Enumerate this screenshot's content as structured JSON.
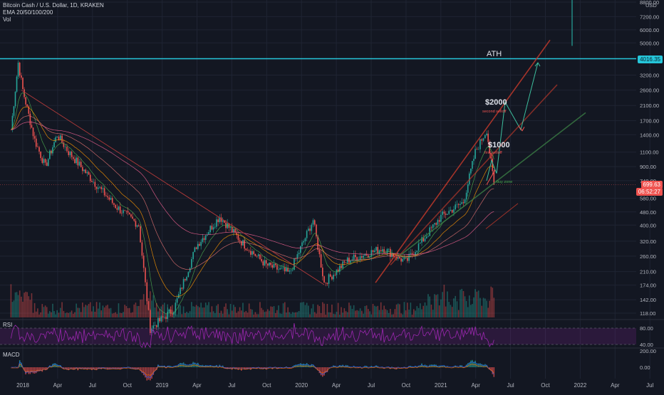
{
  "legend": {
    "symbol_line": "Bitcoin Cash / U.S. Dollar, 1D, KRAKEN",
    "ema_line": "EMA 20/50/100/200",
    "vol_line": "Vol"
  },
  "panes": {
    "rsi_label": "RSI",
    "macd_label": "MACD"
  },
  "price_axis": {
    "ticks": [
      "8800.00",
      "7200.00",
      "6000.00",
      "5000.00",
      "3200.00",
      "2600.00",
      "2100.00",
      "1700.00",
      "1400.00",
      "1100.00",
      "900.00",
      "740.00",
      "580.00",
      "480.00",
      "400.00",
      "320.00",
      "260.00",
      "210.00",
      "174.00",
      "142.00",
      "118.00"
    ],
    "top_unit": "USD",
    "ath_tag": "4016.35",
    "last_price_tag": "699.63",
    "last_time_tag": "06:52:27"
  },
  "rsi_axis": {
    "ticks": [
      "80.00",
      "40.00"
    ]
  },
  "macd_axis": {
    "ticks": [
      "200.00",
      "0.00"
    ]
  },
  "time_axis": {
    "labels": [
      "2018",
      "Apr",
      "Jul",
      "Oct",
      "2019",
      "Apr",
      "Jul",
      "Oct",
      "2020",
      "Apr",
      "Jul",
      "Oct",
      "2021",
      "Apr",
      "Jul",
      "Oct",
      "2022",
      "Apr",
      "Jul"
    ]
  },
  "annotations": {
    "ath": "ATH",
    "target_2000": "$2000",
    "second_selloff": "second selloff",
    "target_1000": "$1000",
    "first_selloff": "first selloff",
    "buy_zone": "buy zone"
  },
  "colors": {
    "bg": "#131722",
    "grid": "#1f2433",
    "up": "#26a69a",
    "down": "#ef5350",
    "ath_line": "#26c6da",
    "rsi": "#9c27b0",
    "channel_red": "#b33a3a",
    "channel_green": "#3a7d44",
    "arrow": "#3dbf9e"
  },
  "chart_data": {
    "type": "candlestick",
    "title": "Bitcoin Cash / U.S. Dollar, 1D, KRAKEN",
    "y_scale": "log",
    "ylim": [
      118,
      8800
    ],
    "series_summary": [
      {
        "date": "2017-12",
        "price": 1500
      },
      {
        "date": "2017-12-20",
        "price": 3800
      },
      {
        "date": "2018-01",
        "price": 2600
      },
      {
        "date": "2018-02",
        "price": 1300
      },
      {
        "date": "2018-03",
        "price": 900
      },
      {
        "date": "2018-04",
        "price": 1400
      },
      {
        "date": "2018-05",
        "price": 1100
      },
      {
        "date": "2018-07",
        "price": 750
      },
      {
        "date": "2018-09",
        "price": 520
      },
      {
        "date": "2018-11",
        "price": 400
      },
      {
        "date": "2018-12",
        "price": 95
      },
      {
        "date": "2019-02",
        "price": 125
      },
      {
        "date": "2019-04",
        "price": 300
      },
      {
        "date": "2019-06",
        "price": 450
      },
      {
        "date": "2019-08",
        "price": 310
      },
      {
        "date": "2019-10",
        "price": 230
      },
      {
        "date": "2019-12",
        "price": 205
      },
      {
        "date": "2020-02",
        "price": 430
      },
      {
        "date": "2020-03",
        "price": 180
      },
      {
        "date": "2020-05",
        "price": 245
      },
      {
        "date": "2020-08",
        "price": 290
      },
      {
        "date": "2020-10",
        "price": 240
      },
      {
        "date": "2021-01",
        "price": 450
      },
      {
        "date": "2021-03",
        "price": 550
      },
      {
        "date": "2021-04",
        "price": 1100
      },
      {
        "date": "2021-05",
        "price": 1500
      },
      {
        "date": "2021-05-20",
        "price": 700
      }
    ],
    "rsi_levels": [
      80,
      40
    ],
    "macd_levels": [
      200,
      0
    ]
  }
}
